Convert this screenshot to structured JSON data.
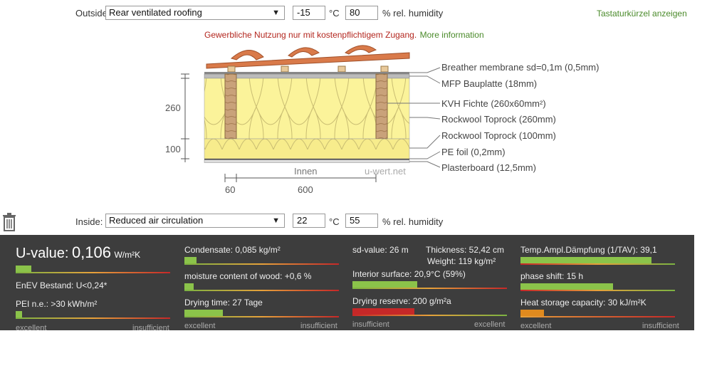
{
  "outside": {
    "label": "Outside",
    "climate_select": "Rear ventilated roofing",
    "temperature": "-15",
    "temp_unit": "°C",
    "humidity": "80",
    "humidity_unit": "% rel. humidity"
  },
  "shortcuts_link": "Tastaturkürzel anzeigen",
  "notice": {
    "text": "Gewerbliche Nutzung nur mit kostenpflichtigem Zugang.",
    "link": "More information"
  },
  "diagram": {
    "dim_260": "260",
    "dim_100": "100",
    "inside_label": "Innen",
    "watermark": "u-wert.net",
    "width_60": "60",
    "width_600": "600",
    "layers": [
      "Breather membrane sd=0,1m (0,5mm)",
      "MFP Bauplatte (18mm)",
      "KVH Fichte (260x60mm²)",
      "Rockwool Toprock (260mm)",
      "Rockwool Toprock (100mm)",
      "PE foil (0,2mm)",
      "Plasterboard (12,5mm)"
    ]
  },
  "inside": {
    "label": "Inside:",
    "climate_select": "Reduced air circulation",
    "temperature": "22",
    "temp_unit": "°C",
    "humidity": "55",
    "humidity_unit": "% rel. humidity"
  },
  "results": {
    "uvalue_label": "U-value:",
    "uvalue": "0,106",
    "uvalue_unit": "W/m²K",
    "uvalue_fill": 0.1,
    "enev": "EnEV Bestand: U<0,24*",
    "pei": "PEI n.e.: >30 kWh/m²",
    "pei_fill": 0.04,
    "scale_good_1": "excellent",
    "scale_bad_1": "insufficient",
    "condensate": "Condensate: 0,085 kg/m²",
    "condensate_fill": 0.08,
    "moisture": "moisture content of wood: +0,6 %",
    "moisture_fill": 0.06,
    "drying_time": "Drying time: 27 Tage",
    "drying_time_fill": 0.25,
    "scale_good_2": "excellent",
    "scale_bad_2": "insufficient",
    "sd_value": "sd-value: 26 m",
    "thickness": "Thickness: 52,42 cm",
    "weight": "Weight: 119 kg/m²",
    "interior_surface": "Interior surface: 20,9°C (59%)",
    "interior_fill": 0.42,
    "drying_reserve": "Drying reserve: 200 g/m²a",
    "drying_reserve_fill": 0.4,
    "scale_bad_3": "insufficient",
    "scale_good_3": "excellent",
    "temp_ampl": "Temp.Ampl.Dämpfung (1/TAV): 39,1",
    "temp_ampl_fill": 0.85,
    "phase_shift": "phase shift: 15 h",
    "phase_shift_fill": 0.6,
    "heat_storage": "Heat storage capacity: 30 kJ/m²K",
    "heat_storage_fill": 0.15,
    "scale_good_4": "excellent",
    "scale_bad_4": "insufficient"
  }
}
